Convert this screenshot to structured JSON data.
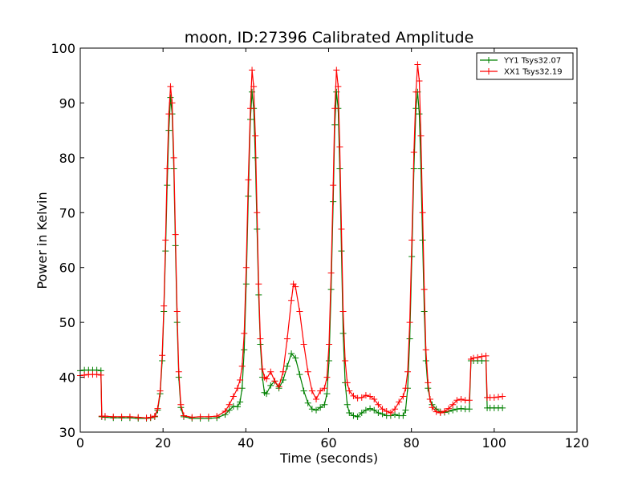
{
  "chart_data": {
    "type": "line",
    "title": "moon, ID:27396 Calibrated Amplitude",
    "xlabel": "Time (seconds)",
    "ylabel": "Power in Kelvin",
    "xlim": [
      0,
      120
    ],
    "ylim": [
      30,
      100
    ],
    "xticks": [
      0,
      20,
      40,
      60,
      80,
      100,
      120
    ],
    "yticks": [
      30,
      40,
      50,
      60,
      70,
      80,
      90,
      100
    ],
    "grid": false,
    "legend_position": "top-right",
    "marker": "+",
    "series": [
      {
        "name": "YY1 Tsys32.07",
        "color": "#008000",
        "points": [
          [
            0,
            41.2
          ],
          [
            1,
            41.3
          ],
          [
            2,
            41.3
          ],
          [
            3,
            41.3
          ],
          [
            4,
            41.3
          ],
          [
            5,
            41.2
          ],
          [
            5.2,
            32.8
          ],
          [
            6,
            32.7
          ],
          [
            8,
            32.6
          ],
          [
            10,
            32.6
          ],
          [
            12,
            32.6
          ],
          [
            14,
            32.5
          ],
          [
            16,
            32.5
          ],
          [
            17,
            32.6
          ],
          [
            18,
            32.8
          ],
          [
            18.7,
            34
          ],
          [
            19.3,
            37
          ],
          [
            19.8,
            43
          ],
          [
            20.2,
            52
          ],
          [
            20.6,
            63
          ],
          [
            21,
            75
          ],
          [
            21.4,
            85
          ],
          [
            21.8,
            91
          ],
          [
            22.2,
            88
          ],
          [
            22.6,
            78
          ],
          [
            23,
            64
          ],
          [
            23.4,
            50
          ],
          [
            23.8,
            40
          ],
          [
            24.3,
            34.5
          ],
          [
            25,
            32.8
          ],
          [
            27,
            32.5
          ],
          [
            29,
            32.5
          ],
          [
            31,
            32.5
          ],
          [
            33,
            32.6
          ],
          [
            35,
            33.2
          ],
          [
            36,
            34
          ],
          [
            37,
            34.7
          ],
          [
            38,
            34.6
          ],
          [
            38.6,
            35.5
          ],
          [
            39.1,
            38
          ],
          [
            39.6,
            45
          ],
          [
            40.1,
            57
          ],
          [
            40.6,
            73
          ],
          [
            41.1,
            87
          ],
          [
            41.5,
            92
          ],
          [
            41.9,
            89
          ],
          [
            42.3,
            80
          ],
          [
            42.7,
            67
          ],
          [
            43.1,
            55
          ],
          [
            43.5,
            46
          ],
          [
            44,
            40
          ],
          [
            44.5,
            37.2
          ],
          [
            45,
            37
          ],
          [
            46,
            38.5
          ],
          [
            47,
            39.3
          ],
          [
            48,
            38
          ],
          [
            49,
            39.5
          ],
          [
            50,
            42
          ],
          [
            51,
            44.3
          ],
          [
            52,
            43.5
          ],
          [
            53,
            40.5
          ],
          [
            54,
            37.5
          ],
          [
            55,
            35.3
          ],
          [
            56,
            34.2
          ],
          [
            57,
            34
          ],
          [
            58,
            34.5
          ],
          [
            59,
            35
          ],
          [
            59.6,
            37
          ],
          [
            60.1,
            43
          ],
          [
            60.6,
            56
          ],
          [
            61.1,
            72
          ],
          [
            61.5,
            86
          ],
          [
            61.9,
            92
          ],
          [
            62.3,
            89
          ],
          [
            62.7,
            78
          ],
          [
            63.1,
            63
          ],
          [
            63.5,
            48
          ],
          [
            64,
            39
          ],
          [
            64.5,
            35
          ],
          [
            65,
            33.5
          ],
          [
            66,
            33
          ],
          [
            67,
            32.8
          ],
          [
            68,
            33.5
          ],
          [
            69,
            34
          ],
          [
            70,
            34.3
          ],
          [
            71,
            34
          ],
          [
            72,
            33.5
          ],
          [
            73,
            33.3
          ],
          [
            74,
            33
          ],
          [
            75,
            33
          ],
          [
            76,
            33.2
          ],
          [
            77,
            33
          ],
          [
            78,
            33
          ],
          [
            78.6,
            34
          ],
          [
            79.1,
            38
          ],
          [
            79.6,
            47
          ],
          [
            80.1,
            62
          ],
          [
            80.6,
            78
          ],
          [
            81.1,
            89
          ],
          [
            81.5,
            92
          ],
          [
            81.9,
            88
          ],
          [
            82.3,
            78
          ],
          [
            82.7,
            65
          ],
          [
            83.1,
            52
          ],
          [
            83.5,
            43
          ],
          [
            84,
            38
          ],
          [
            84.5,
            36
          ],
          [
            85,
            35
          ],
          [
            86,
            34.2
          ],
          [
            87,
            33.7
          ],
          [
            88,
            33.6
          ],
          [
            89,
            33.8
          ],
          [
            90,
            34
          ],
          [
            91,
            34.2
          ],
          [
            92,
            34.3
          ],
          [
            93,
            34.2
          ],
          [
            94,
            34.2
          ],
          [
            94.4,
            43
          ],
          [
            95,
            43
          ],
          [
            96,
            43
          ],
          [
            97,
            43
          ],
          [
            98,
            43
          ],
          [
            98.3,
            34.4
          ],
          [
            99,
            34.4
          ],
          [
            100,
            34.4
          ],
          [
            101,
            34.4
          ],
          [
            102,
            34.4
          ]
        ]
      },
      {
        "name": "XX1 Tsys32.19",
        "color": "#ff0000",
        "points": [
          [
            0,
            40.3
          ],
          [
            1,
            40.4
          ],
          [
            2,
            40.5
          ],
          [
            3,
            40.5
          ],
          [
            4,
            40.5
          ],
          [
            5,
            40.4
          ],
          [
            5.2,
            32.9
          ],
          [
            6,
            32.9
          ],
          [
            8,
            32.8
          ],
          [
            10,
            32.8
          ],
          [
            12,
            32.8
          ],
          [
            14,
            32.7
          ],
          [
            16,
            32.6
          ],
          [
            17,
            32.7
          ],
          [
            18,
            32.9
          ],
          [
            18.7,
            34.3
          ],
          [
            19.3,
            37.5
          ],
          [
            19.8,
            44
          ],
          [
            20.2,
            53
          ],
          [
            20.6,
            65
          ],
          [
            21,
            78
          ],
          [
            21.4,
            88
          ],
          [
            21.8,
            93
          ],
          [
            22.2,
            90
          ],
          [
            22.6,
            80
          ],
          [
            23,
            66
          ],
          [
            23.4,
            52
          ],
          [
            23.8,
            41
          ],
          [
            24.3,
            35
          ],
          [
            25,
            33
          ],
          [
            27,
            32.7
          ],
          [
            29,
            32.8
          ],
          [
            31,
            32.8
          ],
          [
            33,
            32.9
          ],
          [
            35,
            33.8
          ],
          [
            36,
            35
          ],
          [
            37,
            36.5
          ],
          [
            38,
            38
          ],
          [
            38.6,
            39.5
          ],
          [
            39.1,
            42
          ],
          [
            39.6,
            48
          ],
          [
            40.1,
            60
          ],
          [
            40.6,
            76
          ],
          [
            41.1,
            89
          ],
          [
            41.5,
            96
          ],
          [
            41.9,
            93
          ],
          [
            42.3,
            84
          ],
          [
            42.7,
            70
          ],
          [
            43.1,
            57
          ],
          [
            43.5,
            47
          ],
          [
            44,
            41.5
          ],
          [
            44.5,
            40
          ],
          [
            45,
            39.7
          ],
          [
            46,
            41
          ],
          [
            47,
            39.3
          ],
          [
            48,
            38.3
          ],
          [
            49,
            41
          ],
          [
            50,
            47
          ],
          [
            51,
            54
          ],
          [
            51.5,
            57
          ],
          [
            52,
            56.5
          ],
          [
            53,
            52
          ],
          [
            54,
            46
          ],
          [
            55,
            41
          ],
          [
            56,
            37.5
          ],
          [
            57,
            36
          ],
          [
            58,
            37.5
          ],
          [
            59,
            38
          ],
          [
            59.6,
            40
          ],
          [
            60.1,
            46
          ],
          [
            60.6,
            59
          ],
          [
            61.1,
            75
          ],
          [
            61.5,
            89
          ],
          [
            61.9,
            96
          ],
          [
            62.3,
            93
          ],
          [
            62.7,
            82
          ],
          [
            63.1,
            67
          ],
          [
            63.5,
            52
          ],
          [
            64,
            43
          ],
          [
            64.5,
            39
          ],
          [
            65,
            37.5
          ],
          [
            66,
            36.6
          ],
          [
            67,
            36.2
          ],
          [
            68,
            36.3
          ],
          [
            69,
            36.7
          ],
          [
            70,
            36.5
          ],
          [
            71,
            36
          ],
          [
            72,
            35
          ],
          [
            73,
            34.2
          ],
          [
            74,
            33.8
          ],
          [
            75,
            33.5
          ],
          [
            76,
            34.2
          ],
          [
            77,
            35.5
          ],
          [
            78,
            36.5
          ],
          [
            78.6,
            38
          ],
          [
            79.1,
            41
          ],
          [
            79.6,
            50
          ],
          [
            80.1,
            65
          ],
          [
            80.6,
            81
          ],
          [
            81.1,
            92
          ],
          [
            81.5,
            97
          ],
          [
            81.9,
            94
          ],
          [
            82.3,
            84
          ],
          [
            82.7,
            70
          ],
          [
            83.1,
            56
          ],
          [
            83.5,
            45
          ],
          [
            84,
            39
          ],
          [
            84.5,
            36
          ],
          [
            85,
            34.5
          ],
          [
            86,
            33.7
          ],
          [
            87,
            33.5
          ],
          [
            88,
            33.8
          ],
          [
            89,
            34.3
          ],
          [
            90,
            35
          ],
          [
            91,
            35.8
          ],
          [
            92,
            36
          ],
          [
            93,
            35.8
          ],
          [
            94,
            35.8
          ],
          [
            94.4,
            43.3
          ],
          [
            95,
            43.5
          ],
          [
            96,
            43.6
          ],
          [
            97,
            43.8
          ],
          [
            98,
            43.9
          ],
          [
            98.3,
            36.3
          ],
          [
            99,
            36.3
          ],
          [
            100,
            36.3
          ],
          [
            101,
            36.4
          ],
          [
            102,
            36.5
          ]
        ]
      }
    ]
  }
}
